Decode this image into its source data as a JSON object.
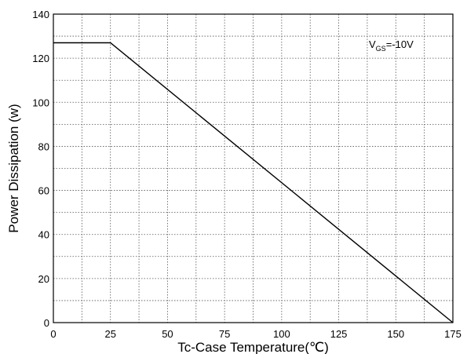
{
  "chart_data": {
    "type": "line",
    "title": "",
    "xlabel": "Tc-Case Temperature(℃)",
    "ylabel": "Power Dissipation (w)",
    "xlim": [
      0,
      175
    ],
    "ylim": [
      0,
      140
    ],
    "xticks": [
      0,
      25,
      50,
      75,
      100,
      125,
      150,
      175
    ],
    "yticks": [
      0,
      20,
      40,
      60,
      80,
      100,
      120,
      140
    ],
    "x_minor_step": 12.5,
    "y_minor_step": 10,
    "grid": true,
    "legend": "none",
    "annotation": {
      "main": "V",
      "sub": "GS",
      "rest": "=-10V"
    },
    "series": [
      {
        "x": [
          0,
          25,
          175
        ],
        "y": [
          127,
          127,
          0
        ],
        "color": "#000000"
      }
    ]
  }
}
